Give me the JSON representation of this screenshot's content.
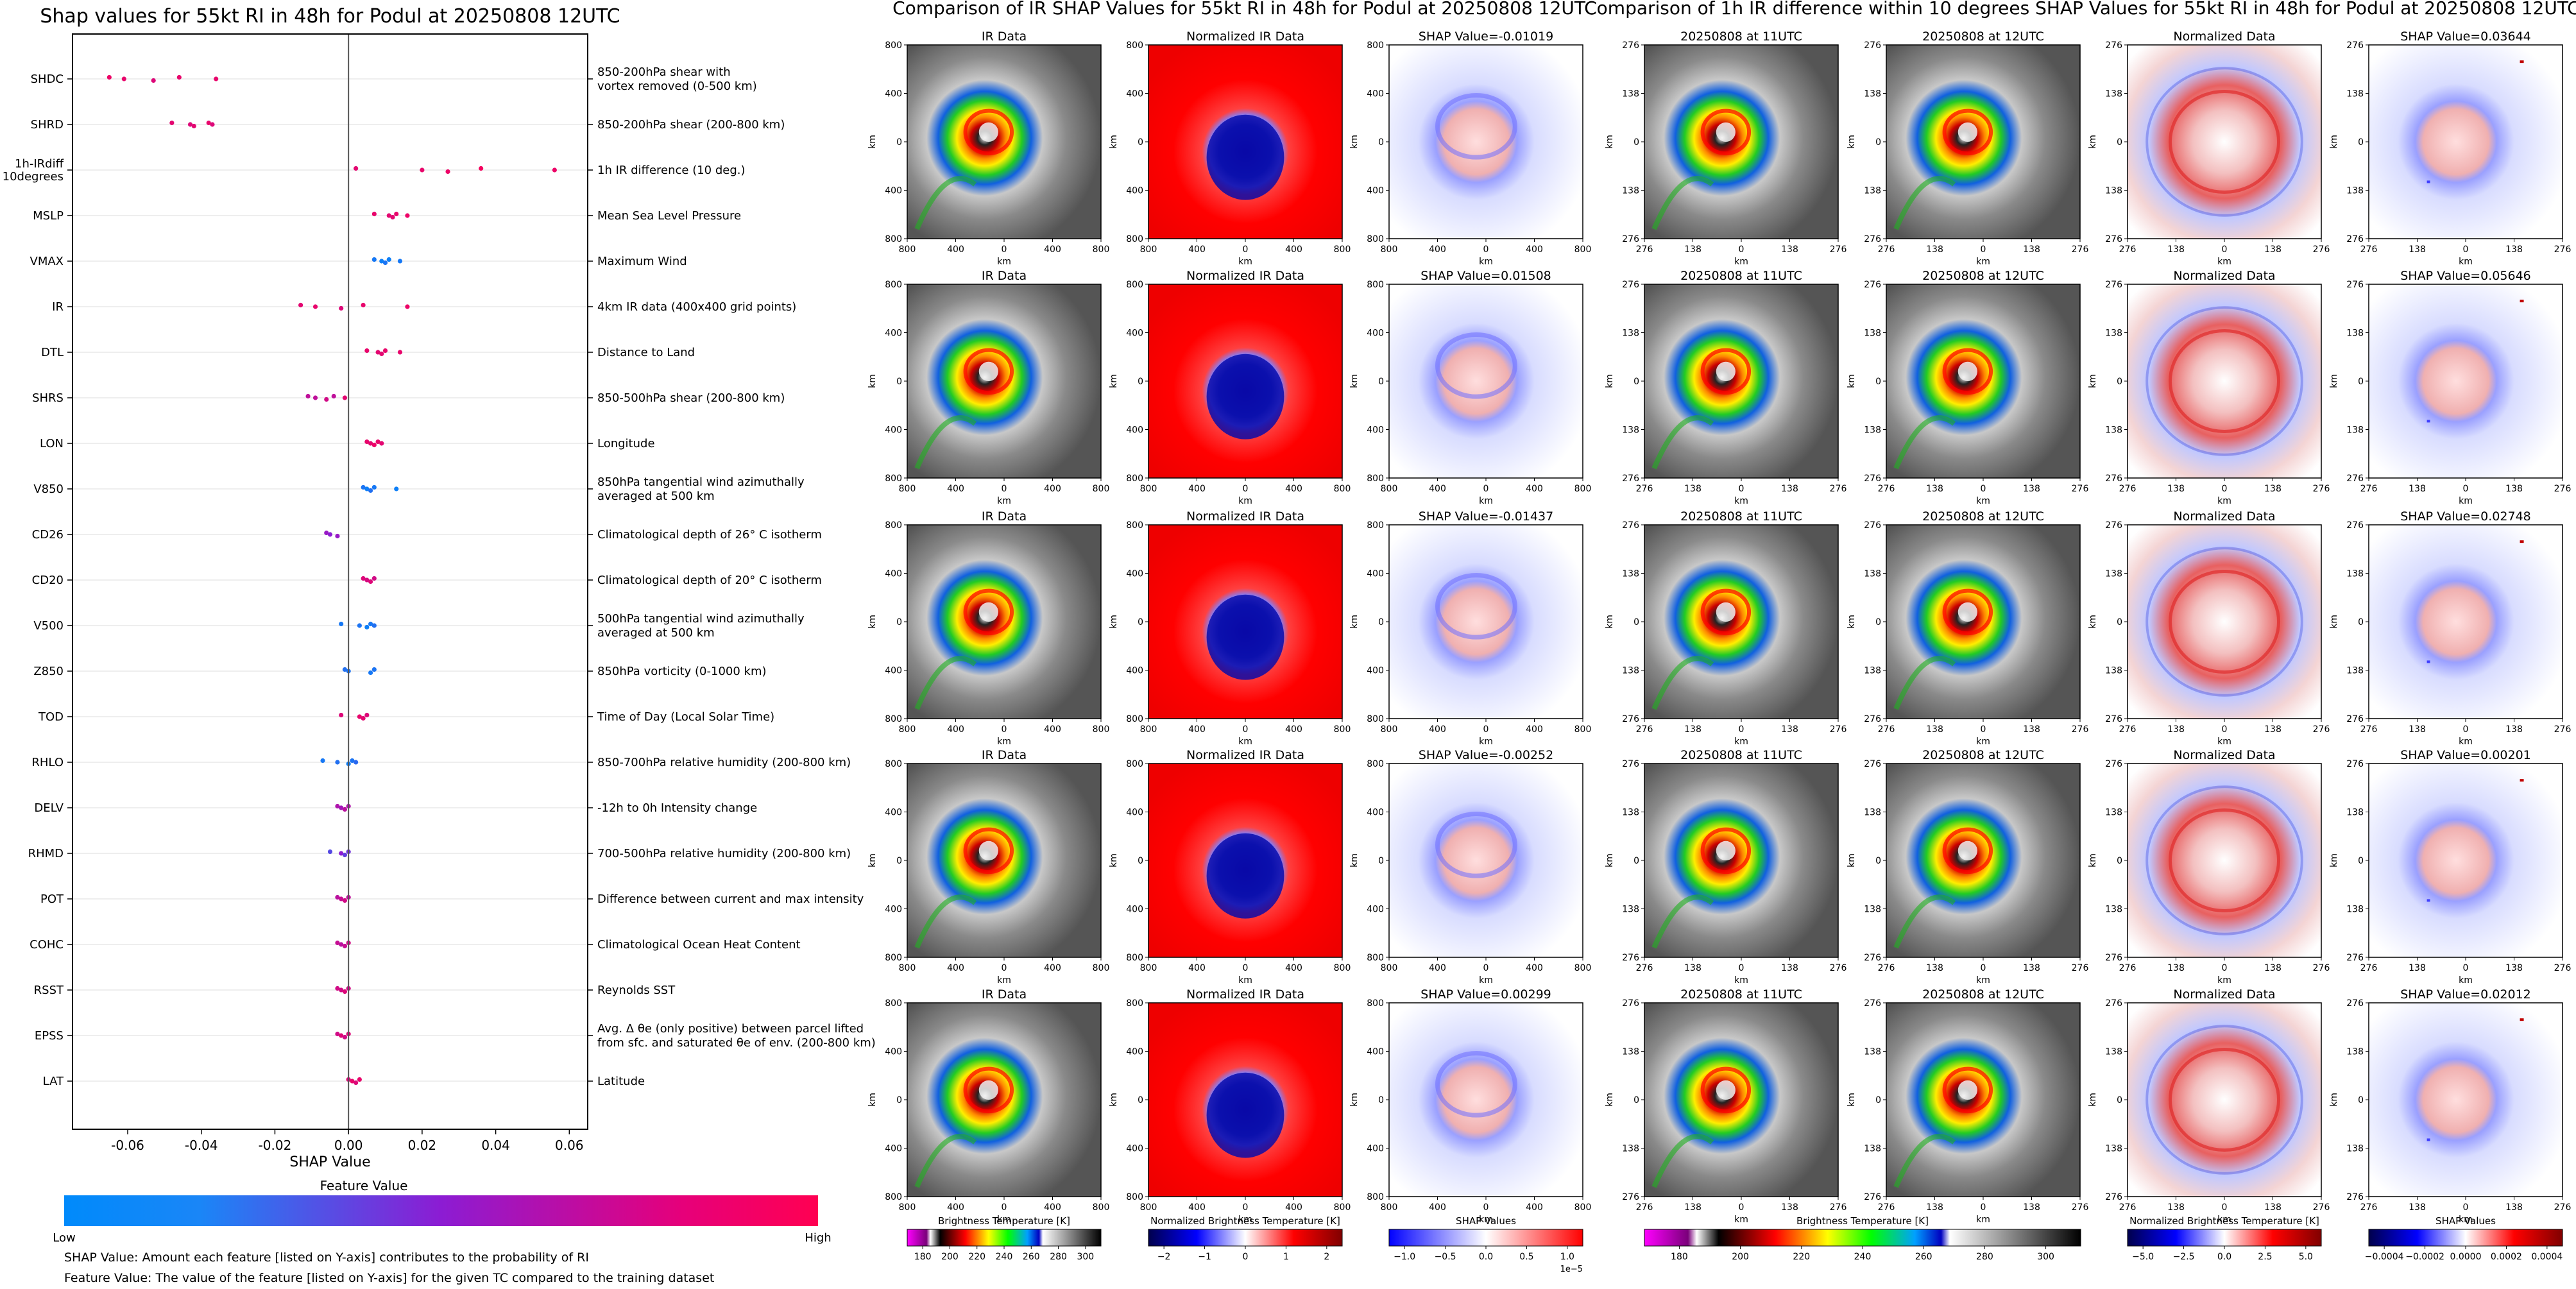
{
  "left_panel": {
    "title": "Shap values for 55kt RI in 48h for Podul at 20250808 12UTC",
    "xlabel": "SHAP Value",
    "colorbar_title": "Feature Value",
    "colorbar_low": "Low",
    "colorbar_high": "High",
    "note_shap": "SHAP Value: Amount each feature [listed on Y-axis] contributes to the probability of RI",
    "note_feature": "Feature Value: The value of the feature [listed on Y-axis] for the given TC compared to the training dataset"
  },
  "chart_data": [
    {
      "type": "scatter",
      "title": "Shap values for 55kt RI in 48h for Podul at 20250808 12UTC",
      "xlabel": "SHAP Value",
      "xlim": [
        -0.075,
        0.065
      ],
      "xticks": [
        "-0.06",
        "-0.04",
        "-0.02",
        "0.00",
        "0.02",
        "0.04",
        "0.06"
      ],
      "xtick_values": [
        -0.06,
        -0.04,
        -0.02,
        0.0,
        0.02,
        0.04,
        0.06
      ],
      "color_low": "#008afb",
      "color_mid": "#8c1cd3",
      "color_high": "#ff0052",
      "features": [
        {
          "name": "SHDC",
          "description": "850-200hPa shear with\nvortex removed (0-500 km)",
          "points": [
            [
              -0.065,
              0.92
            ],
            [
              -0.061,
              0.9
            ],
            [
              -0.053,
              0.85
            ],
            [
              -0.046,
              0.9
            ],
            [
              -0.036,
              0.9
            ]
          ]
        },
        {
          "name": "SHRD",
          "description": "850-200hPa shear (200-800 km)",
          "points": [
            [
              -0.048,
              0.88
            ],
            [
              -0.043,
              0.85
            ],
            [
              -0.042,
              0.88
            ],
            [
              -0.038,
              0.9
            ],
            [
              -0.037,
              0.85
            ]
          ]
        },
        {
          "name": "1h-IRdiff\n10degrees",
          "description": "1h IR difference (10 deg.)",
          "points": [
            [
              0.002,
              0.88
            ],
            [
              0.02,
              0.9
            ],
            [
              0.027,
              0.92
            ],
            [
              0.036,
              0.95
            ],
            [
              0.056,
              0.92
            ]
          ]
        },
        {
          "name": "MSLP",
          "description": "Mean Sea Level Pressure",
          "points": [
            [
              0.007,
              0.9
            ],
            [
              0.011,
              0.88
            ],
            [
              0.012,
              0.88
            ],
            [
              0.013,
              0.9
            ],
            [
              0.016,
              0.92
            ]
          ]
        },
        {
          "name": "VMAX",
          "description": "Maximum Wind",
          "points": [
            [
              0.007,
              0.08
            ],
            [
              0.009,
              0.05
            ],
            [
              0.01,
              0.1
            ],
            [
              0.011,
              0.05
            ],
            [
              0.014,
              0.08
            ]
          ]
        },
        {
          "name": "IR",
          "description": "4km IR data (400x400 grid points)",
          "points": [
            [
              -0.013,
              0.88
            ],
            [
              -0.009,
              0.9
            ],
            [
              -0.002,
              0.85
            ],
            [
              0.004,
              0.9
            ],
            [
              0.016,
              0.92
            ]
          ]
        },
        {
          "name": "DTL",
          "description": "Distance to Land",
          "points": [
            [
              0.005,
              0.9
            ],
            [
              0.008,
              0.88
            ],
            [
              0.009,
              0.88
            ],
            [
              0.01,
              0.9
            ],
            [
              0.014,
              0.9
            ]
          ]
        },
        {
          "name": "SHRS",
          "description": "850-500hPa shear (200-800 km)",
          "points": [
            [
              -0.011,
              0.72
            ],
            [
              -0.009,
              0.72
            ],
            [
              -0.006,
              0.8
            ],
            [
              -0.004,
              0.72
            ],
            [
              -0.001,
              0.88
            ]
          ]
        },
        {
          "name": "LON",
          "description": "Longitude",
          "points": [
            [
              0.005,
              0.9
            ],
            [
              0.006,
              0.88
            ],
            [
              0.007,
              0.92
            ],
            [
              0.008,
              0.9
            ],
            [
              0.009,
              0.88
            ]
          ]
        },
        {
          "name": "V850",
          "description": "850hPa tangential wind azimuthally\naveraged at 500 km",
          "points": [
            [
              0.004,
              0.1
            ],
            [
              0.005,
              0.05
            ],
            [
              0.006,
              0.12
            ],
            [
              0.007,
              0.08
            ],
            [
              0.013,
              0.05
            ]
          ]
        },
        {
          "name": "CD26",
          "description": "Climatological depth of 26° C isotherm",
          "points": [
            [
              -0.006,
              0.55
            ],
            [
              -0.005,
              0.5
            ],
            [
              -0.003,
              0.55
            ]
          ]
        },
        {
          "name": "CD20",
          "description": "Climatological depth of 20° C isotherm",
          "points": [
            [
              0.004,
              0.85
            ],
            [
              0.005,
              0.82
            ],
            [
              0.006,
              0.85
            ],
            [
              0.007,
              0.8
            ]
          ]
        },
        {
          "name": "V500",
          "description": "500hPa tangential wind azimuthally\naveraged at 500 km",
          "points": [
            [
              -0.002,
              0.08
            ],
            [
              0.003,
              0.1
            ],
            [
              0.005,
              0.05
            ],
            [
              0.006,
              0.08
            ],
            [
              0.007,
              0.12
            ]
          ]
        },
        {
          "name": "Z850",
          "description": "850hPa vorticity (0-1000 km)",
          "points": [
            [
              -0.001,
              0.12
            ],
            [
              0.0,
              0.1
            ],
            [
              0.006,
              0.08
            ],
            [
              0.007,
              0.1
            ]
          ]
        },
        {
          "name": "TOD",
          "description": "Time of Day (Local Solar Time)",
          "points": [
            [
              -0.002,
              0.85
            ],
            [
              0.003,
              0.9
            ],
            [
              0.004,
              0.88
            ],
            [
              0.005,
              0.85
            ]
          ]
        },
        {
          "name": "RHLO",
          "description": "850-700hPa relative humidity (200-800 km)",
          "points": [
            [
              -0.007,
              0.08
            ],
            [
              -0.003,
              0.12
            ],
            [
              0.0,
              0.05
            ],
            [
              0.001,
              0.1
            ],
            [
              0.002,
              0.15
            ]
          ]
        },
        {
          "name": "DELV",
          "description": "-12h to 0h Intensity change",
          "points": [
            [
              -0.003,
              0.65
            ],
            [
              -0.002,
              0.6
            ],
            [
              -0.001,
              0.7
            ],
            [
              0.0,
              0.65
            ]
          ]
        },
        {
          "name": "RHMD",
          "description": "700-500hPa relative humidity (200-800 km)",
          "points": [
            [
              -0.005,
              0.3
            ],
            [
              -0.002,
              0.5
            ],
            [
              -0.001,
              0.35
            ],
            [
              0.0,
              0.4
            ]
          ]
        },
        {
          "name": "POT",
          "description": "Difference between current and max intensity",
          "points": [
            [
              -0.003,
              0.7
            ],
            [
              -0.002,
              0.75
            ],
            [
              -0.001,
              0.8
            ],
            [
              0.0,
              0.72
            ]
          ]
        },
        {
          "name": "COHC",
          "description": "Climatological Ocean Heat Content",
          "points": [
            [
              -0.003,
              0.75
            ],
            [
              -0.002,
              0.7
            ],
            [
              -0.001,
              0.75
            ],
            [
              0.0,
              0.8
            ]
          ]
        },
        {
          "name": "RSST",
          "description": "Reynolds SST",
          "points": [
            [
              -0.003,
              0.8
            ],
            [
              -0.002,
              0.8
            ],
            [
              -0.001,
              0.85
            ],
            [
              0.0,
              0.8
            ]
          ]
        },
        {
          "name": "EPSS",
          "description": "Avg. Δ θe (only positive) between parcel lifted\nfrom sfc. and saturated θe of env. (200-800 km)",
          "points": [
            [
              -0.003,
              0.8
            ],
            [
              -0.002,
              0.85
            ],
            [
              -0.001,
              0.8
            ],
            [
              0.0,
              0.85
            ]
          ]
        },
        {
          "name": "LAT",
          "description": "Latitude",
          "points": [
            [
              0.0,
              0.85
            ],
            [
              0.001,
              0.9
            ],
            [
              0.002,
              0.85
            ],
            [
              0.003,
              0.9
            ]
          ]
        }
      ]
    },
    {
      "type": "heatmap",
      "title": "Comparison of IR SHAP Values for 55kt RI in 48h for Podul at 20250808 12UTC",
      "panel_titles": [
        "IR Data",
        "Normalized IR Data"
      ],
      "shap_titles": [
        "SHAP Value=-0.01019",
        "SHAP Value=0.01508",
        "SHAP Value=-0.01437",
        "SHAP Value=-0.00252",
        "SHAP Value=0.00299"
      ],
      "shap_values": [
        -0.01019,
        0.01508,
        -0.01437,
        -0.00252,
        0.00299
      ],
      "xlabel": "km",
      "ylabel": "km",
      "xticks": [
        "800",
        "400",
        "0",
        "400",
        "800"
      ],
      "yticks": [
        "800",
        "400",
        "0",
        "400",
        "800"
      ],
      "colorbars": [
        {
          "label": "Brightness Temperature [K]",
          "ticks": [
            "180",
            "200",
            "220",
            "240",
            "260",
            "280",
            "300"
          ]
        },
        {
          "label": "Normalized Brightness Temperature [K]",
          "ticks": [
            "−2",
            "−1",
            "0",
            "1",
            "2"
          ]
        },
        {
          "label": "SHAP Values",
          "ticks": [
            "−1.0",
            "−0.5",
            "0.0",
            "0.5",
            "1.0"
          ],
          "offset": "1e−5"
        }
      ]
    },
    {
      "type": "heatmap",
      "title": "Comparison of 1h IR difference within 10 degrees SHAP Values for 55kt RI in 48h for Podul at 20250808 12UTC",
      "panel_titles": [
        "20250808 at 11UTC",
        "20250808 at 12UTC",
        "Normalized Data"
      ],
      "shap_titles": [
        "SHAP Value=0.03644",
        "SHAP Value=0.05646",
        "SHAP Value=0.02748",
        "SHAP Value=0.00201",
        "SHAP Value=0.02012"
      ],
      "shap_values": [
        0.03644,
        0.05646,
        0.02748,
        0.00201,
        0.02012
      ],
      "xlabel": "km",
      "ylabel": "km",
      "xticks": [
        "276",
        "138",
        "0",
        "138",
        "276"
      ],
      "yticks": [
        "276",
        "138",
        "0",
        "138",
        "276"
      ],
      "colorbars": [
        {
          "label": "Brightness Temperature [K]",
          "ticks": [
            "180",
            "200",
            "220",
            "240",
            "260",
            "280",
            "300"
          ]
        },
        {
          "label": "Normalized Brightness Temperature [K]",
          "ticks": [
            "−5.0",
            "−2.5",
            "0.0",
            "2.5",
            "5.0"
          ]
        },
        {
          "label": "SHAP Values",
          "ticks": [
            "−0.0004",
            "−0.0002",
            "0.0000",
            "0.0002",
            "0.0004"
          ]
        }
      ]
    }
  ]
}
